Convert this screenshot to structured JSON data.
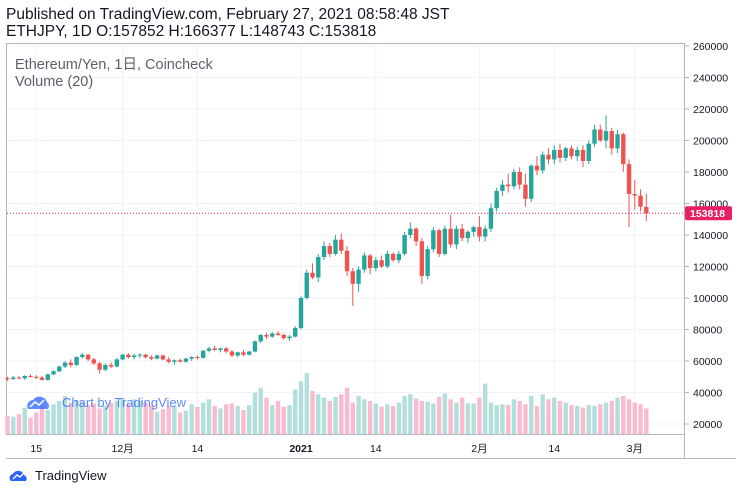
{
  "header": {
    "line1": "Published on TradingView.com, February 27, 2021 08:58:48 JST",
    "line2": "ETHJPY, 1D O:157852 H:166377 L:148743 C:153818"
  },
  "legend": {
    "symbol": "Ethereum/Yen, 1日, Coincheck",
    "volume": "Volume (20)"
  },
  "watermark": "Chart by TradingView",
  "footer_brand": "TradingView",
  "colors": {
    "up": "#26a69a",
    "down": "#ef5350",
    "up_vol": "#b2dfdb",
    "down_vol": "#f8bbd0",
    "last_price": "#e91e63"
  },
  "chart_data": {
    "type": "candlestick",
    "title": "Ethereum/Yen, 1日, Coincheck",
    "ylim": [
      10000,
      262000
    ],
    "y_ticks": [
      "260000",
      "240000",
      "220000",
      "200000",
      "180000",
      "160000",
      "140000",
      "120000",
      "100000",
      "80000",
      "60000",
      "40000",
      "20000"
    ],
    "x_ticks": [
      {
        "label": "15",
        "index": 5
      },
      {
        "label": "12月",
        "index": 20
      },
      {
        "label": "14",
        "index": 33
      },
      {
        "label": "2021",
        "index": 51
      },
      {
        "label": "14",
        "index": 64
      },
      {
        "label": "2月",
        "index": 82
      },
      {
        "label": "14",
        "index": 95
      },
      {
        "label": "3月",
        "index": 109
      }
    ],
    "last_price": 153818,
    "last_price_label": "153818",
    "ohlc": [
      [
        49000,
        50000,
        47500,
        48500
      ],
      [
        48500,
        50500,
        48000,
        49500
      ],
      [
        49500,
        50500,
        48500,
        49000
      ],
      [
        49000,
        51000,
        48000,
        50500
      ],
      [
        50500,
        51500,
        49500,
        50000
      ],
      [
        50000,
        51000,
        48500,
        49500
      ],
      [
        49500,
        50500,
        47500,
        48000
      ],
      [
        48000,
        52000,
        47500,
        51500
      ],
      [
        51500,
        54000,
        51000,
        53500
      ],
      [
        53500,
        57000,
        53000,
        56500
      ],
      [
        56500,
        60000,
        55500,
        59000
      ],
      [
        59000,
        61000,
        56000,
        57500
      ],
      [
        57500,
        63000,
        57000,
        62500
      ],
      [
        62500,
        65000,
        61500,
        64000
      ],
      [
        64000,
        64500,
        60000,
        61000
      ],
      [
        61000,
        62000,
        57500,
        58500
      ],
      [
        58500,
        59500,
        52000,
        54500
      ],
      [
        54500,
        58500,
        53500,
        57500
      ],
      [
        57500,
        59000,
        55500,
        56500
      ],
      [
        56500,
        62000,
        56000,
        61000
      ],
      [
        61000,
        64500,
        60500,
        64000
      ],
      [
        64000,
        65000,
        61500,
        62500
      ],
      [
        62500,
        64500,
        61000,
        63500
      ],
      [
        63500,
        65000,
        62000,
        64000
      ],
      [
        64000,
        64500,
        61500,
        62500
      ],
      [
        62500,
        63500,
        60500,
        61500
      ],
      [
        61500,
        64000,
        61000,
        63500
      ],
      [
        63500,
        64000,
        60500,
        61000
      ],
      [
        61000,
        62500,
        58500,
        59500
      ],
      [
        59500,
        61000,
        57500,
        60500
      ],
      [
        60500,
        61500,
        59000,
        59500
      ],
      [
        59500,
        62000,
        59000,
        61500
      ],
      [
        61500,
        63000,
        60000,
        62500
      ],
      [
        62500,
        63500,
        61000,
        62000
      ],
      [
        62000,
        67000,
        61500,
        66500
      ],
      [
        66500,
        69000,
        65500,
        68000
      ],
      [
        68000,
        69500,
        66500,
        67000
      ],
      [
        67000,
        68500,
        65500,
        68000
      ],
      [
        68000,
        69000,
        65000,
        66000
      ],
      [
        66000,
        67000,
        62500,
        63500
      ],
      [
        63500,
        66000,
        62500,
        65500
      ],
      [
        65500,
        67000,
        63000,
        64000
      ],
      [
        64000,
        66500,
        63500,
        66000
      ],
      [
        66000,
        73000,
        65500,
        72500
      ],
      [
        72500,
        77000,
        71500,
        76500
      ],
      [
        76500,
        78000,
        74000,
        75500
      ],
      [
        75500,
        78500,
        74500,
        77500
      ],
      [
        77500,
        79000,
        76000,
        76500
      ],
      [
        76500,
        77500,
        73500,
        74500
      ],
      [
        74500,
        76500,
        73000,
        75500
      ],
      [
        75500,
        82000,
        75000,
        81000
      ],
      [
        81000,
        101000,
        80000,
        100000
      ],
      [
        100000,
        118000,
        99000,
        116000
      ],
      [
        116000,
        122000,
        112000,
        113000
      ],
      [
        113000,
        128000,
        110000,
        126000
      ],
      [
        126000,
        136000,
        124000,
        133000
      ],
      [
        133000,
        135000,
        126000,
        128000
      ],
      [
        128000,
        140000,
        127000,
        137000
      ],
      [
        137000,
        141000,
        128000,
        130000
      ],
      [
        130000,
        133000,
        114000,
        117000
      ],
      [
        117000,
        119000,
        95000,
        109000
      ],
      [
        109000,
        120000,
        104000,
        118000
      ],
      [
        118000,
        129000,
        116000,
        127000
      ],
      [
        127000,
        128000,
        115000,
        119000
      ],
      [
        119000,
        126000,
        117000,
        124000
      ],
      [
        124000,
        127000,
        119000,
        120000
      ],
      [
        120000,
        130000,
        119000,
        128000
      ],
      [
        128000,
        129000,
        123000,
        124000
      ],
      [
        124000,
        130000,
        122000,
        128000
      ],
      [
        128000,
        142000,
        127000,
        140000
      ],
      [
        140000,
        148000,
        138000,
        144000
      ],
      [
        144000,
        145000,
        133000,
        136000
      ],
      [
        136000,
        138000,
        109000,
        114000
      ],
      [
        114000,
        133000,
        112000,
        131000
      ],
      [
        131000,
        145000,
        129000,
        143000
      ],
      [
        143000,
        144000,
        126000,
        128000
      ],
      [
        128000,
        146000,
        127000,
        144000
      ],
      [
        144000,
        153000,
        132000,
        134000
      ],
      [
        134000,
        146000,
        131000,
        144000
      ],
      [
        144000,
        147000,
        136000,
        138000
      ],
      [
        138000,
        143000,
        135000,
        142000
      ],
      [
        142000,
        146000,
        139000,
        145000
      ],
      [
        145000,
        152000,
        136000,
        139000
      ],
      [
        139000,
        146000,
        136000,
        144000
      ],
      [
        144000,
        160000,
        142000,
        157000
      ],
      [
        157000,
        170000,
        155000,
        168000
      ],
      [
        168000,
        175000,
        165000,
        172000
      ],
      [
        172000,
        179000,
        167000,
        171000
      ],
      [
        171000,
        182000,
        169000,
        180000
      ],
      [
        180000,
        183000,
        169000,
        172000
      ],
      [
        172000,
        179000,
        158000,
        163000
      ],
      [
        163000,
        185000,
        161000,
        184000
      ],
      [
        184000,
        190000,
        178000,
        181000
      ],
      [
        181000,
        193000,
        179000,
        191000
      ],
      [
        191000,
        195000,
        185000,
        188000
      ],
      [
        188000,
        197000,
        185000,
        194000
      ],
      [
        194000,
        198000,
        186000,
        189000
      ],
      [
        189000,
        196000,
        187000,
        195000
      ],
      [
        195000,
        197000,
        188000,
        190000
      ],
      [
        190000,
        196000,
        187000,
        194000
      ],
      [
        194000,
        197000,
        183000,
        187000
      ],
      [
        187000,
        200000,
        185000,
        198000
      ],
      [
        198000,
        210000,
        196000,
        207000
      ],
      [
        207000,
        210000,
        199000,
        200000
      ],
      [
        200000,
        216000,
        195000,
        206000
      ],
      [
        206000,
        208000,
        191000,
        195000
      ],
      [
        195000,
        207000,
        192000,
        204000
      ],
      [
        204000,
        205000,
        180000,
        185000
      ],
      [
        185000,
        188000,
        145000,
        166000
      ],
      [
        166000,
        175000,
        156000,
        165000
      ],
      [
        165000,
        169000,
        155000,
        158000
      ],
      [
        157852,
        166377,
        148743,
        153818
      ]
    ],
    "volume": [
      22000,
      21000,
      24000,
      32000,
      20000,
      26000,
      33000,
      29000,
      36000,
      40000,
      46000,
      38000,
      41000,
      39000,
      35000,
      37000,
      31000,
      34000,
      38000,
      40000,
      44000,
      36000,
      42000,
      40000,
      38000,
      34000,
      27000,
      30000,
      34000,
      33000,
      26000,
      28000,
      36000,
      33000,
      38000,
      42000,
      34000,
      31000,
      36000,
      37000,
      34000,
      29000,
      35000,
      50000,
      56000,
      44000,
      35000,
      40000,
      33000,
      35000,
      54000,
      64000,
      74000,
      52000,
      48000,
      44000,
      40000,
      45000,
      48000,
      56000,
      38000,
      46000,
      42000,
      40000,
      37000,
      33000,
      36000,
      34000,
      38000,
      46000,
      48000,
      43000,
      40000,
      39000,
      37000,
      45000,
      49000,
      42000,
      38000,
      44000,
      37000,
      37000,
      44000,
      61000,
      38000,
      35000,
      36000,
      35000,
      42000,
      40000,
      36000,
      46000,
      34000,
      48000,
      42000,
      44000,
      40000,
      38000,
      35000,
      34000,
      32000,
      35000,
      34000,
      36000,
      38000,
      40000,
      44000,
      46000,
      42000,
      38000,
      36000,
      31000
    ]
  }
}
